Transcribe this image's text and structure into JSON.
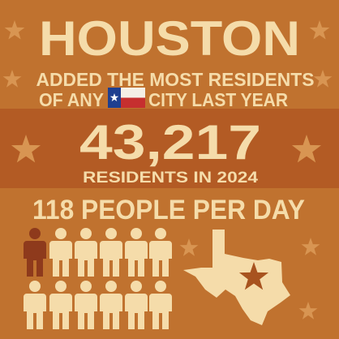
{
  "header": {
    "title": "HOUSTON",
    "line1": "ADDED THE MOST RESIDENTS",
    "line2_before": "OF ANY",
    "line2_after": "CITY LAST YEAR"
  },
  "stat": {
    "number": "43,217",
    "caption": "RESIDENTS IN 2024"
  },
  "rate": "118 PEOPLE PER DAY"
}
